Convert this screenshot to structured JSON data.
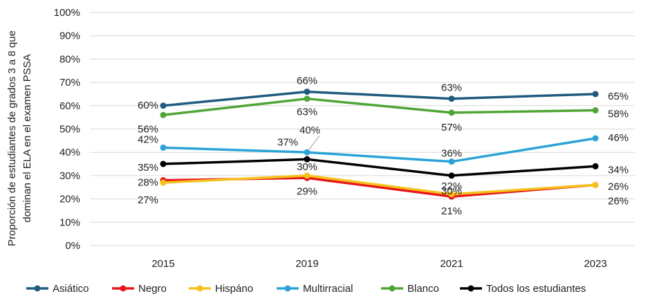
{
  "chart_data": {
    "type": "line",
    "title": "",
    "ylabel_lines": [
      "Proporción de estudiantes de grados 3 a 8 que",
      "dominan el ELA en el examen PSSA"
    ],
    "xlabel": "",
    "categories": [
      "2015",
      "2019",
      "2021",
      "2023"
    ],
    "ylim": [
      0,
      100
    ],
    "yticks": [
      "0%",
      "10%",
      "20%",
      "30%",
      "40%",
      "50%",
      "60%",
      "70%",
      "80%",
      "90%",
      "100%"
    ],
    "grid": true,
    "legend_position": "bottom",
    "series": [
      {
        "name": "Asiático",
        "color": "#1f5b7e",
        "values": [
          60,
          66,
          63,
          65
        ],
        "labels": [
          "60%",
          "66%",
          "63%",
          "65%"
        ]
      },
      {
        "name": "Negro",
        "color": "#e8141b",
        "values": [
          28,
          29,
          21,
          26
        ],
        "labels": [
          "28%",
          "29%",
          "21%",
          "26%"
        ]
      },
      {
        "name": "Hispáno",
        "color": "#f5c11a",
        "values": [
          27,
          30,
          22,
          26
        ],
        "labels": [
          "27%",
          "30%",
          "22%",
          "26%"
        ]
      },
      {
        "name": "Multirracial",
        "color": "#2ba3d6",
        "values": [
          42,
          40,
          36,
          46
        ],
        "labels": [
          "42%",
          "40%",
          "36%",
          "46%"
        ]
      },
      {
        "name": "Blanco",
        "color": "#4fa535",
        "values": [
          56,
          63,
          57,
          58
        ],
        "labels": [
          "56%",
          "63%",
          "57%",
          "58%"
        ]
      },
      {
        "name": "Todos los estudiantes",
        "color": "#000000",
        "values": [
          35,
          37,
          30,
          34
        ],
        "labels": [
          "35%",
          "37%",
          "30%",
          "34%"
        ]
      }
    ]
  }
}
